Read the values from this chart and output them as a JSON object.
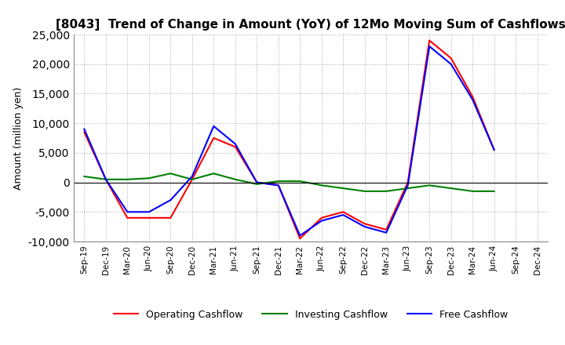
{
  "title": "[8043]  Trend of Change in Amount (YoY) of 12Mo Moving Sum of Cashflows",
  "ylabel": "Amount (million yen)",
  "ylim": [
    -10000,
    25000
  ],
  "yticks": [
    -10000,
    -5000,
    0,
    5000,
    10000,
    15000,
    20000,
    25000
  ],
  "x_labels": [
    "Sep-19",
    "Dec-19",
    "Mar-20",
    "Jun-20",
    "Sep-20",
    "Dec-20",
    "Mar-21",
    "Jun-21",
    "Sep-21",
    "Dec-21",
    "Mar-22",
    "Jun-22",
    "Sep-22",
    "Dec-22",
    "Mar-23",
    "Jun-23",
    "Sep-23",
    "Dec-23",
    "Mar-24",
    "Jun-24",
    "Sep-24",
    "Dec-24"
  ],
  "operating": [
    8500,
    500,
    -6000,
    -6000,
    -6000,
    500,
    7500,
    6000,
    0,
    -500,
    -9500,
    -6000,
    -5000,
    -7000,
    -8000,
    0,
    24000,
    21000,
    14500,
    5500,
    null,
    null
  ],
  "investing": [
    1000,
    500,
    500,
    700,
    1500,
    500,
    1500,
    500,
    -300,
    200,
    200,
    -500,
    -1000,
    -1500,
    -1500,
    -1000,
    -500,
    -1000,
    -1500,
    -1500,
    null,
    null
  ],
  "free": [
    9000,
    500,
    -5000,
    -5000,
    -3000,
    1000,
    9500,
    6500,
    0,
    -500,
    -9000,
    -6500,
    -5500,
    -7500,
    -8500,
    -500,
    23000,
    20000,
    14000,
    5500,
    null,
    null
  ],
  "operating_color": "#ff0000",
  "investing_color": "#008000",
  "free_color": "#0000ff",
  "background_color": "#ffffff",
  "grid_color": "#aaaaaa"
}
